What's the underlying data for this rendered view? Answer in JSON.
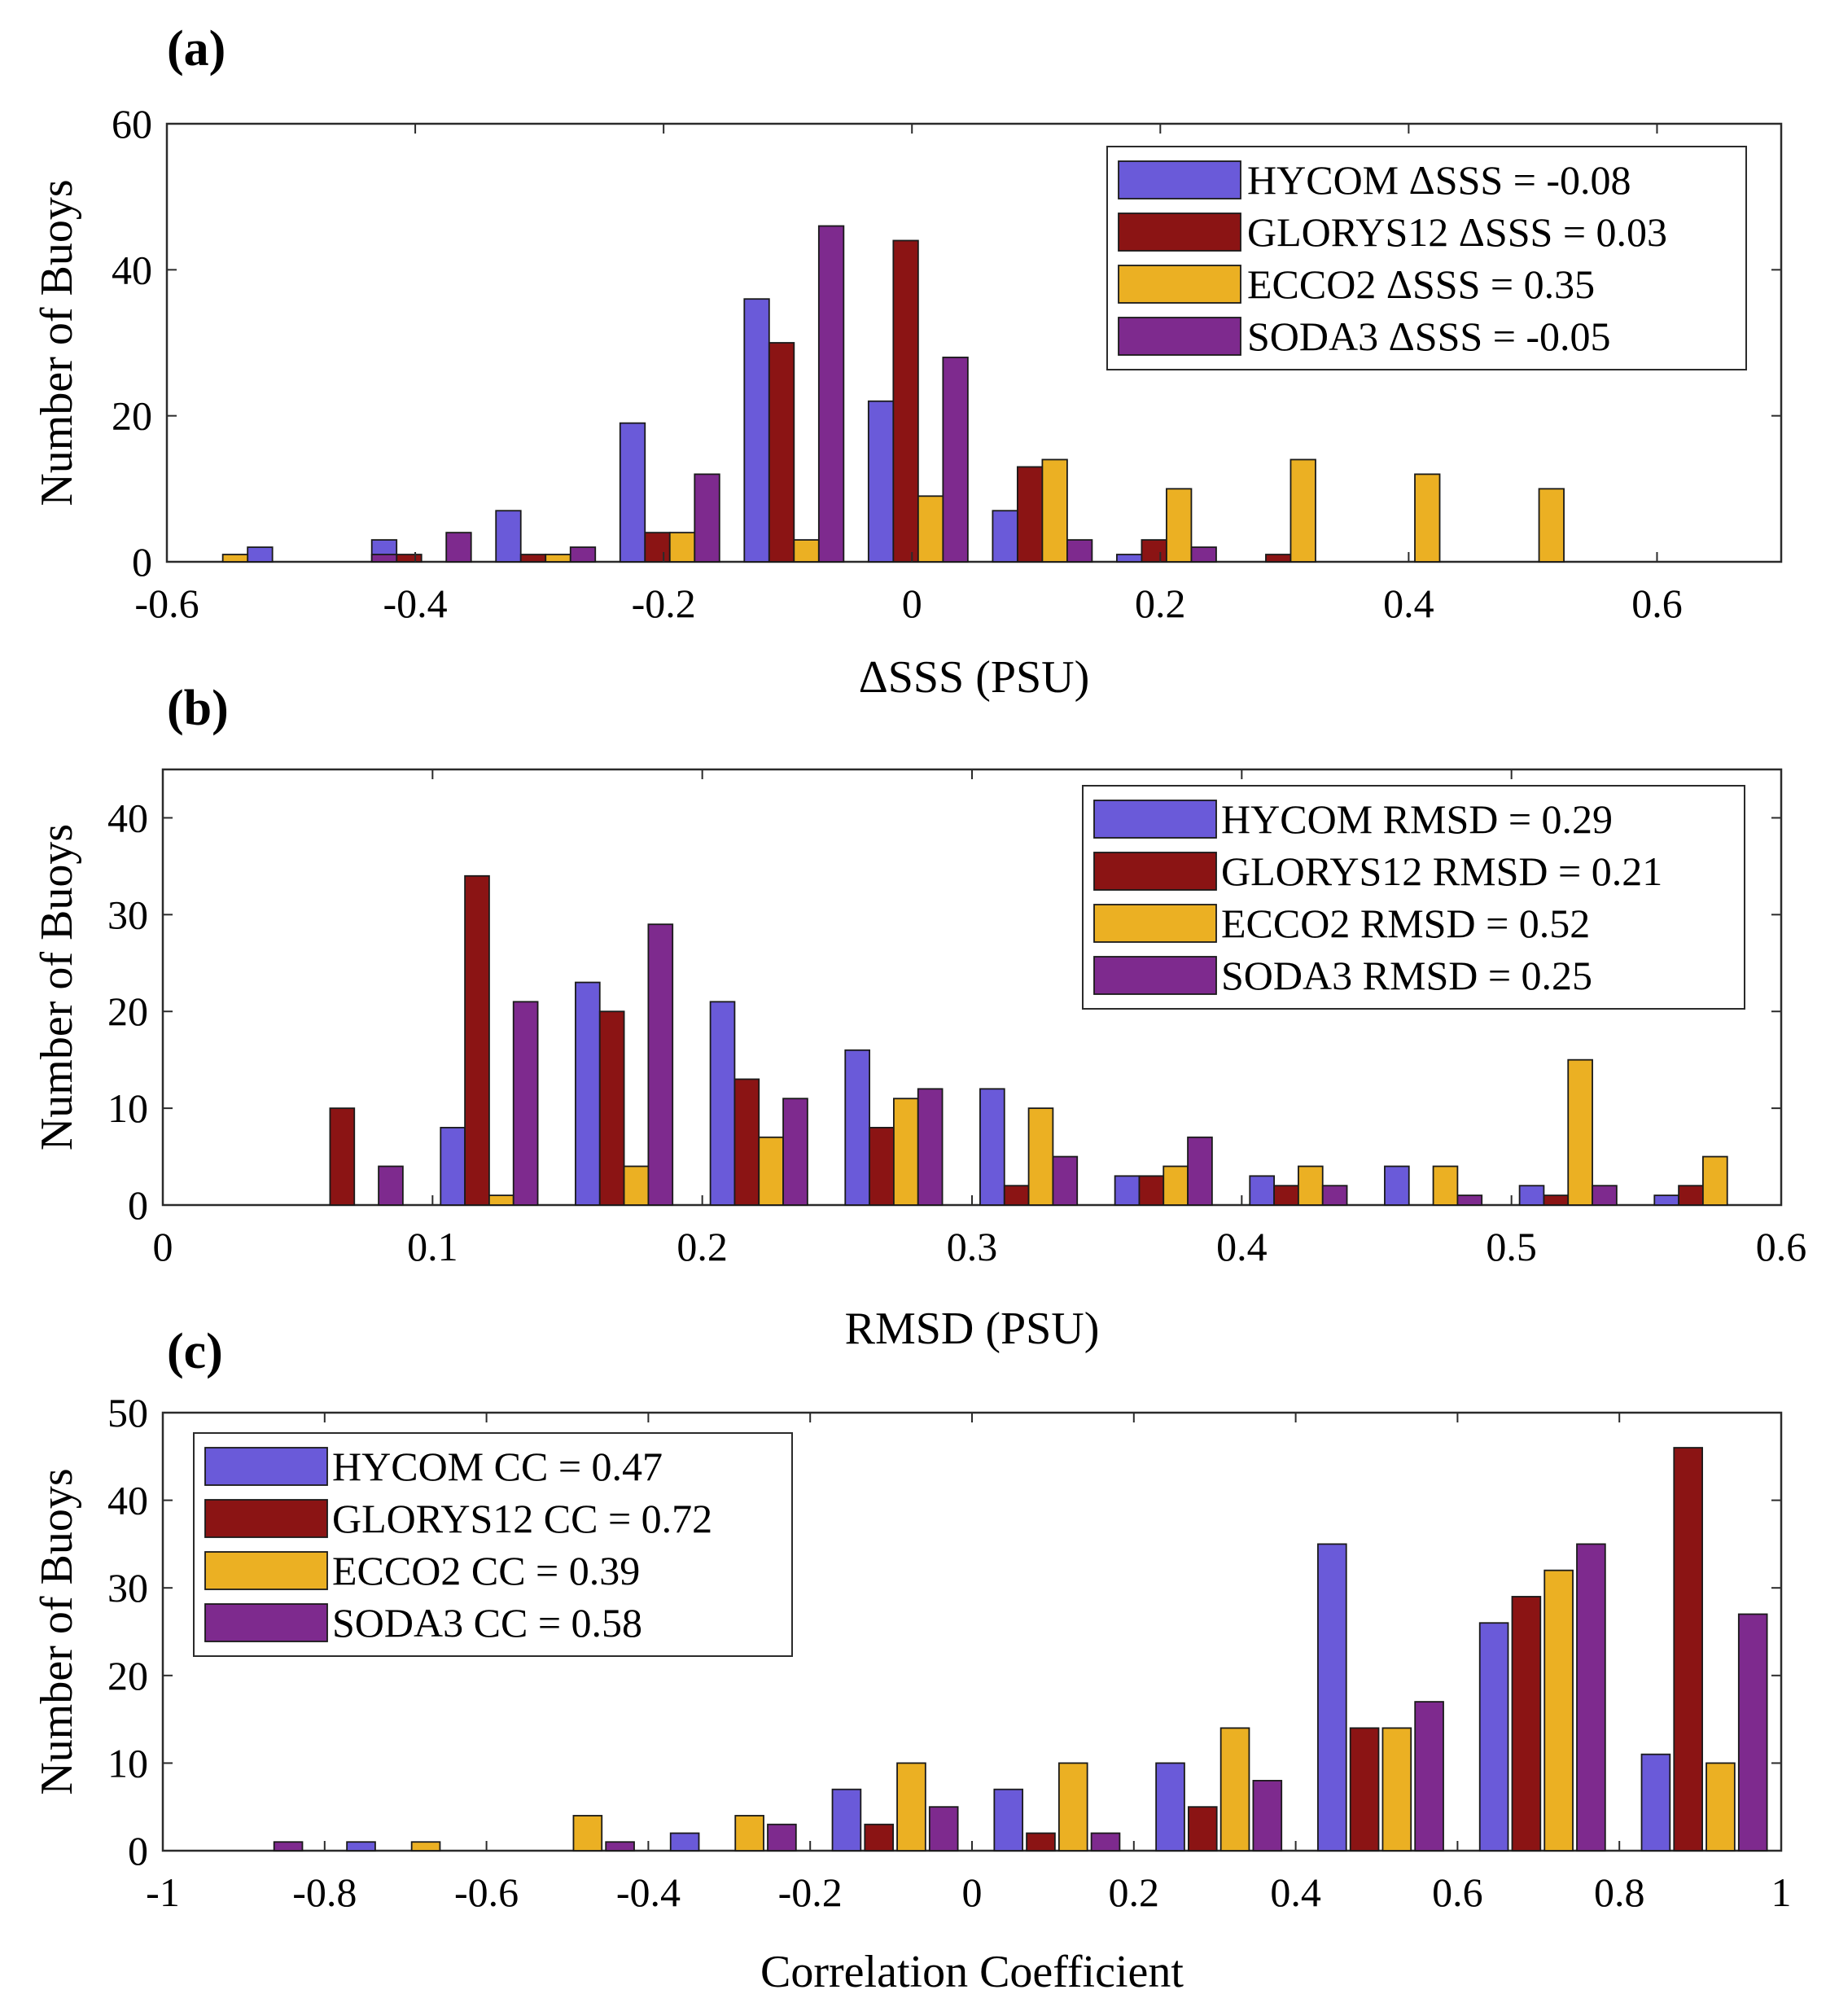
{
  "colors": {
    "HYCOM": "#6a5ad9",
    "GLORYS12": "#8b1414",
    "ECCO2": "#ebb023",
    "SODA3": "#7e2a8e"
  },
  "chart_data": [
    {
      "type": "bar",
      "panel_label": "(a)",
      "xlabel": "ΔSSS  (PSU)",
      "ylabel": "Number of Buoys",
      "xlim": [
        -0.6,
        0.7
      ],
      "ylim": [
        0,
        60
      ],
      "xticks": [
        -0.6,
        -0.4,
        -0.2,
        0,
        0.2,
        0.4,
        0.6
      ],
      "xtick_labels": [
        "-0.6",
        "-0.4",
        "-0.2",
        "0",
        "0.2",
        "0.4",
        "0.6"
      ],
      "yticks": [
        0,
        20,
        40,
        60
      ],
      "ytick_labels": [
        "0",
        "20",
        "40",
        "60"
      ],
      "legend_position": "top-right",
      "categories": [
        -0.5,
        -0.4,
        -0.3,
        -0.2,
        -0.1,
        0,
        0.1,
        0.2,
        0.3,
        0.4,
        0.5,
        0.6
      ],
      "bar_width": 0.02,
      "offsets": [
        -0.025,
        -0.005,
        0.015,
        0.035
      ],
      "series": [
        {
          "name": "HYCOM",
          "legend": "HYCOM  ΔSSS = -0.08",
          "values": [
            2,
            3,
            7,
            19,
            36,
            22,
            7,
            1,
            0,
            0,
            0,
            0
          ]
        },
        {
          "name": "GLORYS12",
          "legend": "GLORYS12  ΔSSS = 0.03",
          "values": [
            0,
            1,
            1,
            4,
            30,
            44,
            13,
            3,
            1,
            0,
            0,
            0
          ]
        },
        {
          "name": "ECCO2",
          "legend": "ECCO2  ΔSSS = 0.35",
          "values": [
            0,
            0,
            1,
            4,
            3,
            9,
            14,
            10,
            14,
            12,
            10,
            0
          ]
        },
        {
          "name": "SODA3",
          "legend": "SODA3  ΔSSS = -0.05",
          "values": [
            0,
            4,
            2,
            12,
            46,
            28,
            3,
            2,
            0,
            0,
            0,
            0
          ]
        }
      ],
      "extra_bars": [
        {
          "series": "ECCO2",
          "x": -0.545,
          "value": 1
        },
        {
          "series": "SODA3",
          "x": -0.425,
          "value": 1
        }
      ]
    },
    {
      "type": "bar",
      "panel_label": "(b)",
      "xlabel": "RMSD  (PSU)",
      "ylabel": "Number of Buoys",
      "xlim": [
        0,
        0.6
      ],
      "ylim": [
        0,
        45
      ],
      "xticks": [
        0,
        0.1,
        0.2,
        0.3,
        0.4,
        0.5,
        0.6
      ],
      "xtick_labels": [
        "0",
        "0.1",
        "0.2",
        "0.3",
        "0.4",
        "0.5",
        "0.6"
      ],
      "yticks": [
        0,
        10,
        20,
        30,
        40
      ],
      "ytick_labels": [
        "0",
        "10",
        "20",
        "30",
        "40"
      ],
      "legend_position": "top-right",
      "categories": [
        0.05,
        0.1,
        0.15,
        0.2,
        0.25,
        0.3,
        0.35,
        0.4,
        0.45,
        0.5,
        0.55
      ],
      "bar_width": 0.009,
      "offsets": [
        0.0075,
        0.0165,
        0.0255,
        0.0345
      ],
      "series": [
        {
          "name": "HYCOM",
          "legend": "HYCOM  RMSD = 0.29",
          "values": [
            0,
            8,
            23,
            21,
            16,
            12,
            3,
            3,
            4,
            2,
            1
          ]
        },
        {
          "name": "GLORYS12",
          "legend": "GLORYS12  RMSD = 0.21",
          "values": [
            10,
            34,
            20,
            13,
            8,
            2,
            3,
            2,
            0,
            1,
            2
          ]
        },
        {
          "name": "ECCO2",
          "legend": "ECCO2  RMSD = 0.52",
          "values": [
            0,
            1,
            4,
            7,
            11,
            10,
            4,
            4,
            4,
            15,
            5
          ]
        },
        {
          "name": "SODA3",
          "legend": "SODA3  RMSD = 0.25",
          "values": [
            4,
            21,
            29,
            11,
            12,
            5,
            7,
            2,
            1,
            2,
            0
          ]
        }
      ],
      "extra_bars": []
    },
    {
      "type": "bar",
      "panel_label": "(c)",
      "xlabel": "Correlation Coefficient",
      "ylabel": "Number of Buoys",
      "xlim": [
        -1,
        1
      ],
      "ylim": [
        0,
        50
      ],
      "xticks": [
        -1,
        -0.8,
        -0.6,
        -0.4,
        -0.2,
        0,
        0.2,
        0.4,
        0.6,
        0.8,
        1
      ],
      "xtick_labels": [
        "-1",
        "-0.8",
        "-0.6",
        "-0.4",
        "-0.2",
        "0",
        "0.2",
        "0.4",
        "0.6",
        "0.8",
        "1"
      ],
      "yticks": [
        0,
        10,
        20,
        30,
        40,
        50
      ],
      "ytick_labels": [
        "0",
        "10",
        "20",
        "30",
        "40",
        "50"
      ],
      "legend_position": "top-left",
      "categories": [
        -0.8,
        -0.6,
        -0.4,
        -0.2,
        0,
        0.2,
        0.4,
        0.6,
        0.8
      ],
      "bar_width": 0.035,
      "offsets": [
        0.045,
        0.085,
        0.125,
        0.165
      ],
      "series": [
        {
          "name": "HYCOM",
          "legend": "HYCOM  CC = 0.47",
          "values": [
            1,
            0,
            2,
            7,
            7,
            10,
            35,
            26,
            11
          ]
        },
        {
          "name": "GLORYS12",
          "legend": "GLORYS12  CC = 0.72",
          "values": [
            0,
            0,
            0,
            3,
            2,
            5,
            14,
            29,
            46
          ]
        },
        {
          "name": "ECCO2",
          "legend": "ECCO2  CC = 0.39",
          "values": [
            1,
            4,
            4,
            10,
            10,
            14,
            14,
            32,
            10
          ]
        },
        {
          "name": "SODA3",
          "legend": "SODA3  CC = 0.58",
          "values": [
            0,
            1,
            3,
            5,
            2,
            8,
            17,
            35,
            27
          ]
        }
      ],
      "extra_bars": [
        {
          "series": "SODA3",
          "x": -0.845,
          "value": 1
        }
      ]
    }
  ]
}
